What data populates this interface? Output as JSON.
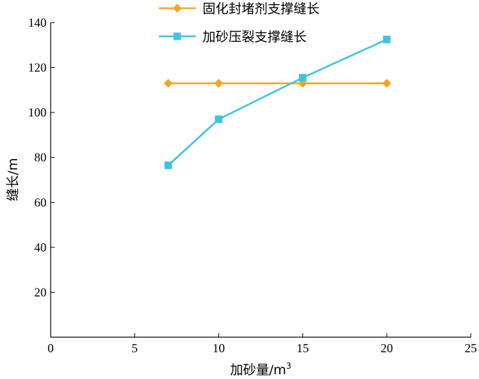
{
  "chart_data": {
    "type": "line",
    "xlabel": "加砂量/m",
    "xlabel_sup": "3",
    "ylabel": "缝长/m",
    "xlim": [
      0,
      25
    ],
    "ylim": [
      0,
      140
    ],
    "xticks": [
      0,
      5,
      10,
      15,
      20,
      25
    ],
    "yticks": [
      20,
      40,
      60,
      80,
      100,
      120,
      140
    ],
    "grid": false,
    "legend_position": "top-center",
    "series": [
      {
        "name": "固化封堵剂支撑缝长",
        "color": "#F2A71B",
        "marker": "diamond",
        "x": [
          7,
          10,
          15,
          20
        ],
        "y": [
          113,
          113,
          113,
          113
        ]
      },
      {
        "name": "加砂压裂支撑缝长",
        "color": "#3EC3E6",
        "marker": "square",
        "x": [
          7,
          10,
          15,
          20
        ],
        "y": [
          76.5,
          97,
          115.5,
          132.5
        ]
      }
    ]
  }
}
